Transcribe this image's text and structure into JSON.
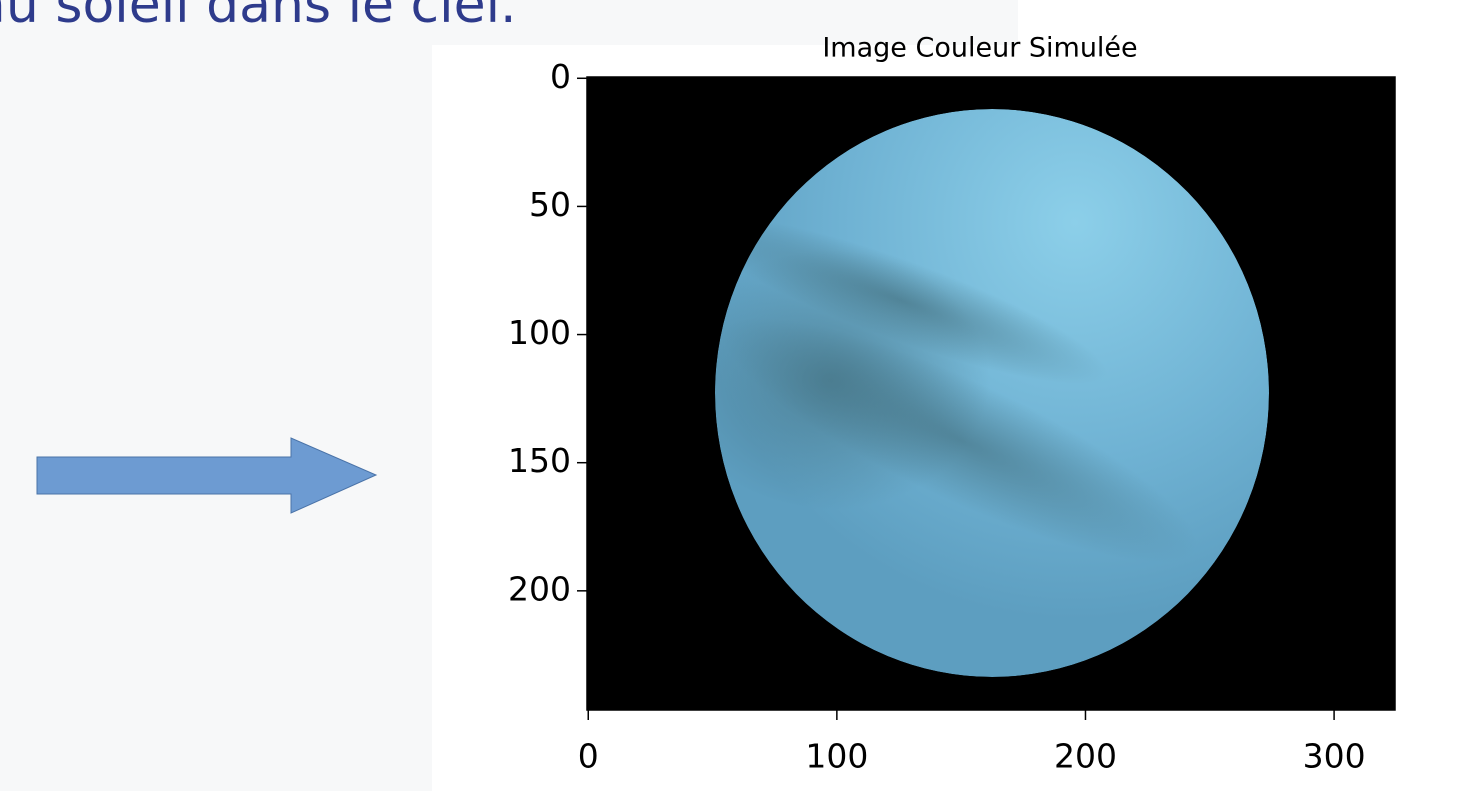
{
  "slide": {
    "text": "au soleil dans le ciel."
  },
  "chart_data": {
    "type": "image",
    "title": "Image Couleur Simulée",
    "xlim": [
      -0.5,
      324.5
    ],
    "ylim": [
      246.5,
      -0.5
    ],
    "xticks": [
      0,
      100,
      200,
      300
    ],
    "yticks": [
      0,
      50,
      100,
      150,
      200
    ]
  }
}
